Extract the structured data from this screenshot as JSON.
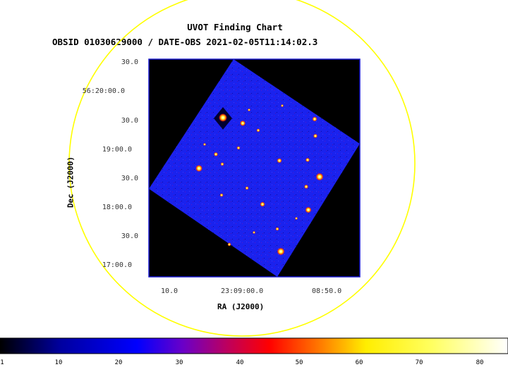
{
  "header": {
    "title": "UVOT Finding Chart",
    "subtitle": "OBSID 01030629000 / DATE-OBS 2021-02-05T11:14:02.3"
  },
  "axes": {
    "ra_label": "RA (J2000)",
    "dec_label": "Dec (J2000)",
    "ra_ticks": [
      "10.0",
      "23:09:00.0",
      "08:50.0"
    ],
    "dec_ticks": [
      "30.0",
      "56:20:00.0",
      "30.0",
      "19:00.0",
      "30.0",
      "18:00.0",
      "30.0",
      "17:00.0"
    ]
  },
  "colorbar": {
    "ticks": [
      "1",
      "10",
      "20",
      "30",
      "40",
      "50",
      "60",
      "70",
      "80"
    ]
  },
  "colors": {
    "circle": "#ffff00",
    "field_background": "#000000",
    "exposure": "#1a22ee",
    "frame": "#1a1ad0"
  }
}
